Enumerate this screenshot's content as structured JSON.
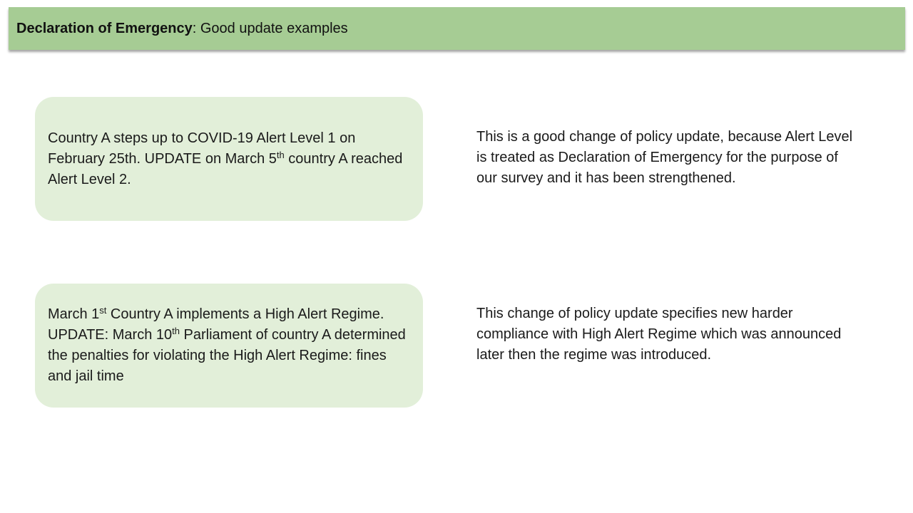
{
  "header": {
    "title_bold": "Declaration of Emergency",
    "title_rest": ": Good update examples"
  },
  "examples": [
    {
      "card": {
        "t1": "Country A steps up to COVID-19 Alert Level 1 on February 25th. UPDATE on March 5",
        "sup1": "th",
        "t2": " country A reached Alert Level 2."
      },
      "explanation": "This is a good change of policy update, because Alert Level is treated as Declaration of Emergency for the purpose of our survey and it has been strengthened."
    },
    {
      "card": {
        "t1": "March 1",
        "sup1": "st",
        "t2": " Country A implements a High Alert Regime. UPDATE: March 10",
        "sup2": "th",
        "t3": " Parliament of country A determined the penalties for violating the High Alert Regime: fines and jail time"
      },
      "explanation": "This change of policy update specifies new harder compliance with High Alert Regime which was announced later then the regime was introduced."
    }
  ]
}
